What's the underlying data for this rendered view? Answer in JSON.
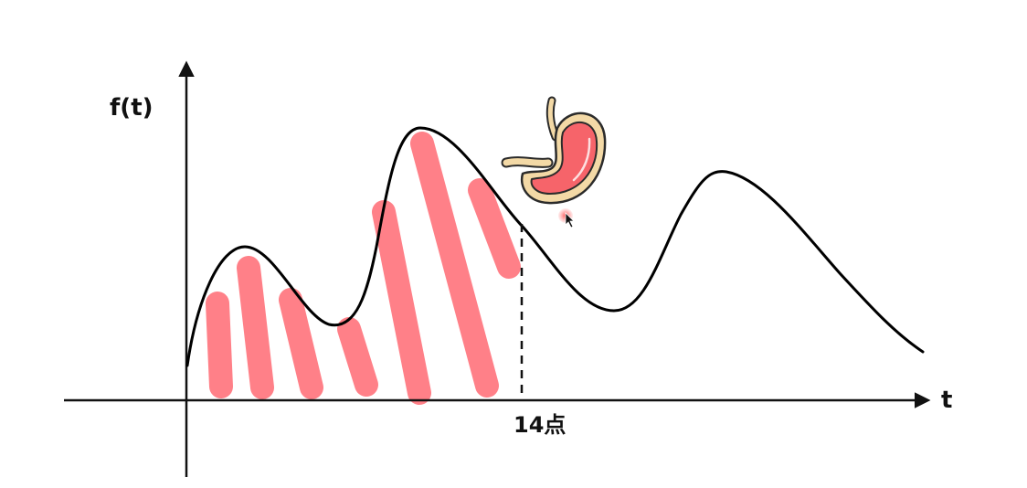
{
  "diagram": {
    "y_axis_label": "f(t)",
    "x_axis_label": "t",
    "marker_label": "14点",
    "colors": {
      "curve": "#000000",
      "hatch": "#ff8088",
      "stomach_fill": "#f6646a",
      "stomach_outline": "#2b2b2b",
      "stomach_tube": "#f3d9a6",
      "cursor_highlight": "#ff5a5a"
    },
    "icons": [
      "stomach-icon",
      "mouse-pointer-icon"
    ]
  }
}
